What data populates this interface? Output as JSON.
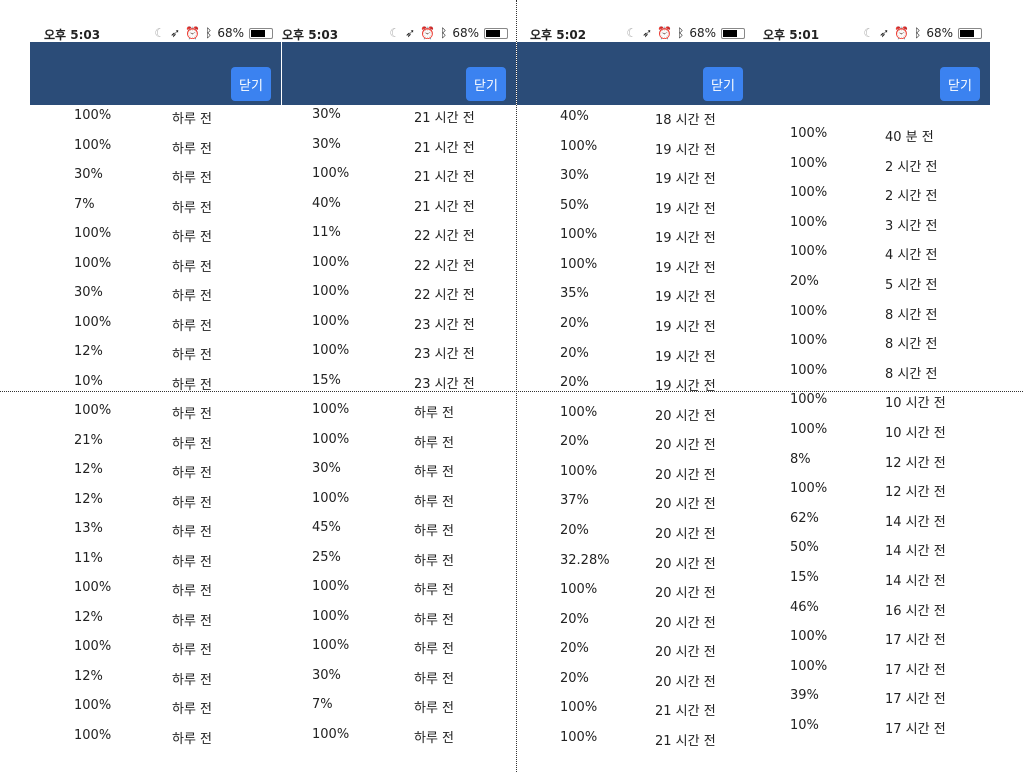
{
  "colors": {
    "header": "#2b4c78",
    "button": "#3b82f0"
  },
  "panels": [
    {
      "time": "오후 5:03",
      "battery": "68%",
      "close_label": "닫기",
      "rows": [
        [
          "100%",
          "하루 전"
        ],
        [
          "100%",
          "하루 전"
        ],
        [
          "30%",
          "하루 전"
        ],
        [
          "7%",
          "하루 전"
        ],
        [
          "100%",
          "하루 전"
        ],
        [
          "100%",
          "하루 전"
        ],
        [
          "30%",
          "하루 전"
        ],
        [
          "100%",
          "하루 전"
        ],
        [
          "12%",
          "하루 전"
        ],
        [
          "10%",
          "하루 전"
        ],
        [
          "100%",
          "하루 전"
        ],
        [
          "21%",
          "하루 전"
        ],
        [
          "12%",
          "하루 전"
        ],
        [
          "12%",
          "하루 전"
        ],
        [
          "13%",
          "하루 전"
        ],
        [
          "11%",
          "하루 전"
        ],
        [
          "100%",
          "하루 전"
        ],
        [
          "12%",
          "하루 전"
        ],
        [
          "100%",
          "하루 전"
        ],
        [
          "12%",
          "하루 전"
        ],
        [
          "100%",
          "하루 전"
        ],
        [
          "100%",
          "하루 전"
        ]
      ]
    },
    {
      "time": "오후 5:03",
      "battery": "68%",
      "close_label": "닫기",
      "rows": [
        [
          "30%",
          "21 시간 전"
        ],
        [
          "30%",
          "21 시간 전"
        ],
        [
          "100%",
          "21 시간 전"
        ],
        [
          "40%",
          "21 시간 전"
        ],
        [
          "11%",
          "22 시간 전"
        ],
        [
          "100%",
          "22 시간 전"
        ],
        [
          "100%",
          "22 시간 전"
        ],
        [
          "100%",
          "23 시간 전"
        ],
        [
          "100%",
          "23 시간 전"
        ],
        [
          "15%",
          "23 시간 전"
        ],
        [
          "100%",
          "하루 전"
        ],
        [
          "100%",
          "하루 전"
        ],
        [
          "30%",
          "하루 전"
        ],
        [
          "100%",
          "하루 전"
        ],
        [
          "45%",
          "하루 전"
        ],
        [
          "25%",
          "하루 전"
        ],
        [
          "100%",
          "하루 전"
        ],
        [
          "100%",
          "하루 전"
        ],
        [
          "100%",
          "하루 전"
        ],
        [
          "30%",
          "하루 전"
        ],
        [
          "7%",
          "하루 전"
        ],
        [
          "100%",
          "하루 전"
        ]
      ]
    },
    {
      "time": "오후 5:02",
      "battery": "68%",
      "close_label": "닫기",
      "rows": [
        [
          "40%",
          "18 시간 전"
        ],
        [
          "100%",
          "19 시간 전"
        ],
        [
          "30%",
          "19 시간 전"
        ],
        [
          "50%",
          "19 시간 전"
        ],
        [
          "100%",
          "19 시간 전"
        ],
        [
          "100%",
          "19 시간 전"
        ],
        [
          "35%",
          "19 시간 전"
        ],
        [
          "20%",
          "19 시간 전"
        ],
        [
          "20%",
          "19 시간 전"
        ],
        [
          "20%",
          "19 시간 전"
        ],
        [
          "100%",
          "20 시간 전"
        ],
        [
          "20%",
          "20 시간 전"
        ],
        [
          "100%",
          "20 시간 전"
        ],
        [
          "37%",
          "20 시간 전"
        ],
        [
          "20%",
          "20 시간 전"
        ],
        [
          "32.28%",
          "20 시간 전"
        ],
        [
          "100%",
          "20 시간 전"
        ],
        [
          "20%",
          "20 시간 전"
        ],
        [
          "20%",
          "20 시간 전"
        ],
        [
          "20%",
          "20 시간 전"
        ],
        [
          "100%",
          "21 시간 전"
        ],
        [
          "100%",
          "21 시간 전"
        ]
      ]
    },
    {
      "time": "오후 5:01",
      "battery": "68%",
      "close_label": "닫기",
      "rows": [
        [
          "100%",
          "40 분 전"
        ],
        [
          "100%",
          "2 시간 전"
        ],
        [
          "100%",
          "2 시간 전"
        ],
        [
          "100%",
          "3 시간 전"
        ],
        [
          "100%",
          "4 시간 전"
        ],
        [
          "20%",
          "5 시간 전"
        ],
        [
          "100%",
          "8 시간 전"
        ],
        [
          "100%",
          "8 시간 전"
        ],
        [
          "100%",
          "8 시간 전"
        ],
        [
          "100%",
          "10 시간 전"
        ],
        [
          "100%",
          "10 시간 전"
        ],
        [
          "8%",
          "12 시간 전"
        ],
        [
          "100%",
          "12 시간 전"
        ],
        [
          "62%",
          "14 시간 전"
        ],
        [
          "50%",
          "14 시간 전"
        ],
        [
          "15%",
          "14 시간 전"
        ],
        [
          "46%",
          "16 시간 전"
        ],
        [
          "100%",
          "17 시간 전"
        ],
        [
          "100%",
          "17 시간 전"
        ],
        [
          "39%",
          "17 시간 전"
        ],
        [
          "10%",
          "17 시간 전"
        ]
      ]
    }
  ]
}
